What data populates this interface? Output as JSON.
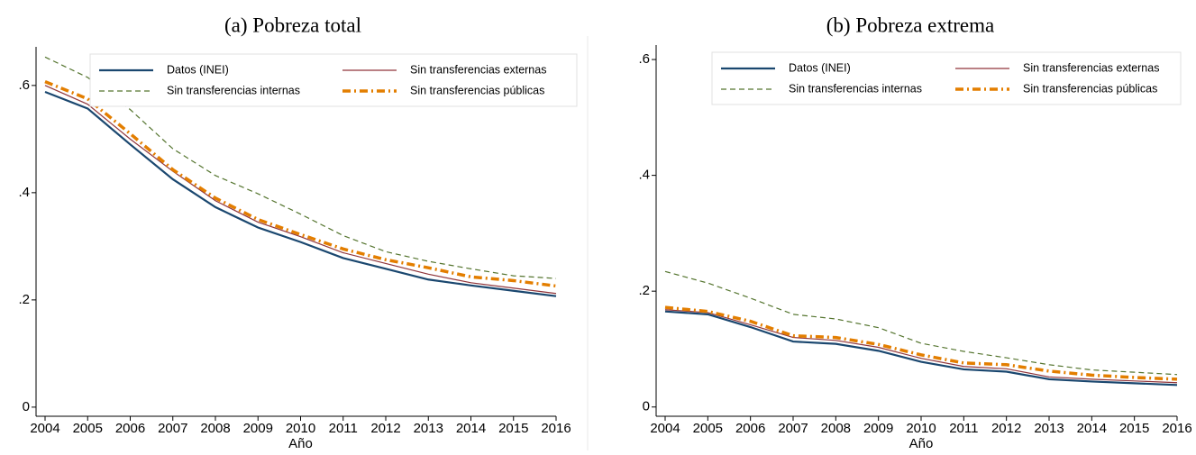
{
  "chart_data": [
    {
      "type": "line",
      "title": "(a) Pobreza total",
      "x_label": "Año",
      "x": [
        2004,
        2005,
        2006,
        2007,
        2008,
        2009,
        2010,
        2011,
        2012,
        2013,
        2014,
        2015,
        2016
      ],
      "xlim": [
        2004,
        2016
      ],
      "xticks": [
        2004,
        2005,
        2006,
        2007,
        2008,
        2009,
        2010,
        2011,
        2012,
        2013,
        2014,
        2015,
        2016
      ],
      "ylim": [
        -0.017,
        0.672
      ],
      "yticks": [
        0,
        {
          "value": 0.2,
          "label": ".2"
        },
        {
          "value": 0.4,
          "label": ".4"
        },
        {
          "value": 0.6,
          "label": ".6"
        }
      ],
      "legend": "top",
      "series": [
        {
          "name": "Datos (INEI)",
          "color": "#1a476f",
          "style": "solid",
          "values": [
            0.588,
            0.557,
            0.49,
            0.425,
            0.373,
            0.335,
            0.308,
            0.278,
            0.258,
            0.238,
            0.227,
            0.217,
            0.207
          ]
        },
        {
          "name": "Sin transferencias externas",
          "color": "#90353b",
          "style": "thin",
          "values": [
            0.6,
            0.565,
            0.5,
            0.44,
            0.385,
            0.345,
            0.318,
            0.288,
            0.268,
            0.248,
            0.232,
            0.222,
            0.212
          ]
        },
        {
          "name": "Sin transferencias internas",
          "color": "#55752f",
          "style": "dashed",
          "values": [
            0.653,
            0.615,
            0.555,
            0.482,
            0.432,
            0.398,
            0.36,
            0.32,
            0.29,
            0.272,
            0.258,
            0.245,
            0.24
          ]
        },
        {
          "name": "Sin transferencias públicas",
          "color": "#e37e00",
          "style": "dashdot",
          "values": [
            0.607,
            0.575,
            0.51,
            0.443,
            0.39,
            0.35,
            0.322,
            0.295,
            0.275,
            0.26,
            0.243,
            0.236,
            0.226
          ]
        }
      ]
    },
    {
      "type": "line",
      "title": "(b) Pobreza extrema",
      "x_label": "Año",
      "x": [
        2004,
        2005,
        2006,
        2007,
        2008,
        2009,
        2010,
        2011,
        2012,
        2013,
        2014,
        2015,
        2016
      ],
      "xlim": [
        2004,
        2016
      ],
      "xticks": [
        2004,
        2005,
        2006,
        2007,
        2008,
        2009,
        2010,
        2011,
        2012,
        2013,
        2014,
        2015,
        2016
      ],
      "ylim": [
        -0.016,
        0.625
      ],
      "yticks": [
        0,
        {
          "value": 0.2,
          "label": ".2"
        },
        {
          "value": 0.4,
          "label": ".4"
        },
        {
          "value": 0.6,
          "label": ".6"
        }
      ],
      "legend": "top",
      "series": [
        {
          "name": "Datos (INEI)",
          "color": "#1a476f",
          "style": "solid",
          "values": [
            0.165,
            0.16,
            0.138,
            0.113,
            0.109,
            0.097,
            0.078,
            0.065,
            0.061,
            0.048,
            0.044,
            0.041,
            0.038
          ]
        },
        {
          "name": "Sin transferencias externas",
          "color": "#90353b",
          "style": "thin",
          "values": [
            0.168,
            0.163,
            0.142,
            0.12,
            0.115,
            0.103,
            0.084,
            0.07,
            0.066,
            0.052,
            0.048,
            0.045,
            0.042
          ]
        },
        {
          "name": "Sin transferencias internas",
          "color": "#55752f",
          "style": "dashed",
          "values": [
            0.234,
            0.214,
            0.188,
            0.16,
            0.152,
            0.137,
            0.11,
            0.096,
            0.085,
            0.073,
            0.064,
            0.06,
            0.056
          ]
        },
        {
          "name": "Sin transferencias públicas",
          "color": "#e37e00",
          "style": "dashdot",
          "values": [
            0.172,
            0.165,
            0.148,
            0.123,
            0.12,
            0.108,
            0.09,
            0.076,
            0.073,
            0.062,
            0.055,
            0.051,
            0.048
          ]
        }
      ]
    }
  ]
}
